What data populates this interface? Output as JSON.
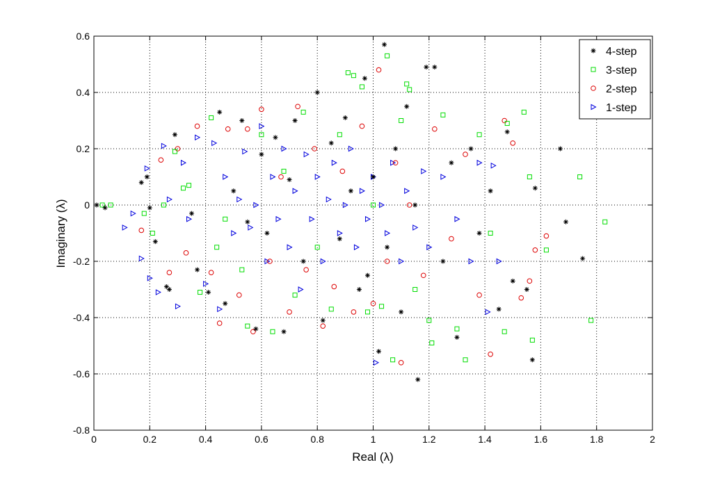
{
  "chart_data": {
    "type": "scatter",
    "title": "",
    "xlabel": "Real (λ)",
    "ylabel": "Imaginary (λ)",
    "xlim": [
      0,
      2
    ],
    "ylim": [
      -0.8,
      0.6
    ],
    "xticks": [
      "0",
      "0.2",
      "0.4",
      "0.6",
      "0.8",
      "1",
      "1.2",
      "1.4",
      "1.6",
      "1.8",
      "2"
    ],
    "yticks": [
      "0.6",
      "0.4",
      "0.2",
      "0",
      "-0.2",
      "-0.4",
      "-0.6",
      "-0.8"
    ],
    "grid": true,
    "legend_position": "top-right",
    "series": [
      {
        "name": "4-step",
        "marker": "asterisk",
        "color": "#000000",
        "points": [
          [
            0.01,
            0.0
          ],
          [
            0.04,
            -0.01
          ],
          [
            0.17,
            0.08
          ],
          [
            0.19,
            0.1
          ],
          [
            0.2,
            -0.01
          ],
          [
            0.22,
            -0.13
          ],
          [
            0.26,
            -0.29
          ],
          [
            0.27,
            -0.3
          ],
          [
            0.29,
            0.25
          ],
          [
            0.35,
            -0.03
          ],
          [
            0.37,
            -0.23
          ],
          [
            0.41,
            -0.31
          ],
          [
            0.45,
            0.33
          ],
          [
            0.47,
            -0.35
          ],
          [
            0.5,
            0.05
          ],
          [
            0.53,
            0.3
          ],
          [
            0.55,
            -0.06
          ],
          [
            0.58,
            -0.44
          ],
          [
            0.6,
            0.18
          ],
          [
            0.62,
            -0.1
          ],
          [
            0.65,
            0.24
          ],
          [
            0.68,
            -0.45
          ],
          [
            0.7,
            0.09
          ],
          [
            0.72,
            0.3
          ],
          [
            0.75,
            -0.2
          ],
          [
            0.8,
            0.4
          ],
          [
            0.82,
            -0.41
          ],
          [
            0.85,
            0.22
          ],
          [
            0.88,
            -0.12
          ],
          [
            0.9,
            0.31
          ],
          [
            0.92,
            0.05
          ],
          [
            0.95,
            -0.3
          ],
          [
            0.97,
            0.45
          ],
          [
            0.98,
            -0.25
          ],
          [
            1.0,
            0.1
          ],
          [
            1.02,
            -0.52
          ],
          [
            1.04,
            0.57
          ],
          [
            1.05,
            -0.15
          ],
          [
            1.08,
            0.2
          ],
          [
            1.1,
            -0.38
          ],
          [
            1.12,
            0.35
          ],
          [
            1.15,
            0.0
          ],
          [
            1.16,
            -0.62
          ],
          [
            1.19,
            0.49
          ],
          [
            1.22,
            0.49
          ],
          [
            1.25,
            -0.2
          ],
          [
            1.28,
            0.15
          ],
          [
            1.3,
            -0.47
          ],
          [
            1.35,
            0.2
          ],
          [
            1.38,
            -0.1
          ],
          [
            1.42,
            0.05
          ],
          [
            1.45,
            -0.37
          ],
          [
            1.48,
            0.26
          ],
          [
            1.5,
            -0.27
          ],
          [
            1.55,
            -0.3
          ],
          [
            1.57,
            -0.55
          ],
          [
            1.58,
            0.06
          ],
          [
            1.67,
            0.2
          ],
          [
            1.69,
            -0.06
          ],
          [
            1.75,
            -0.19
          ]
        ]
      },
      {
        "name": "3-step",
        "marker": "square",
        "color": "#00dd00",
        "points": [
          [
            0.03,
            0.0
          ],
          [
            0.06,
            0.0
          ],
          [
            0.18,
            -0.03
          ],
          [
            0.21,
            -0.1
          ],
          [
            0.25,
            0.0
          ],
          [
            0.29,
            0.19
          ],
          [
            0.32,
            0.06
          ],
          [
            0.34,
            0.07
          ],
          [
            0.38,
            -0.31
          ],
          [
            0.42,
            0.31
          ],
          [
            0.44,
            -0.15
          ],
          [
            0.47,
            -0.05
          ],
          [
            0.53,
            -0.23
          ],
          [
            0.55,
            -0.43
          ],
          [
            0.6,
            0.25
          ],
          [
            0.64,
            -0.45
          ],
          [
            0.68,
            0.12
          ],
          [
            0.72,
            -0.32
          ],
          [
            0.75,
            0.33
          ],
          [
            0.8,
            -0.15
          ],
          [
            0.85,
            -0.37
          ],
          [
            0.88,
            0.25
          ],
          [
            0.91,
            0.47
          ],
          [
            0.93,
            0.46
          ],
          [
            0.96,
            0.42
          ],
          [
            0.98,
            -0.38
          ],
          [
            1.0,
            0.0
          ],
          [
            1.03,
            -0.36
          ],
          [
            1.05,
            0.53
          ],
          [
            1.07,
            -0.55
          ],
          [
            1.1,
            0.3
          ],
          [
            1.12,
            0.43
          ],
          [
            1.13,
            0.41
          ],
          [
            1.15,
            -0.3
          ],
          [
            1.2,
            -0.41
          ],
          [
            1.21,
            -0.49
          ],
          [
            1.25,
            0.32
          ],
          [
            1.3,
            -0.44
          ],
          [
            1.33,
            -0.55
          ],
          [
            1.38,
            0.25
          ],
          [
            1.42,
            -0.1
          ],
          [
            1.47,
            -0.45
          ],
          [
            1.48,
            0.29
          ],
          [
            1.54,
            0.33
          ],
          [
            1.56,
            0.1
          ],
          [
            1.57,
            -0.48
          ],
          [
            1.62,
            -0.16
          ],
          [
            1.74,
            0.1
          ],
          [
            1.78,
            -0.41
          ],
          [
            1.83,
            -0.06
          ]
        ]
      },
      {
        "name": "2-step",
        "marker": "circle",
        "color": "#dd0000",
        "points": [
          [
            0.17,
            -0.09
          ],
          [
            0.24,
            0.16
          ],
          [
            0.27,
            -0.24
          ],
          [
            0.3,
            0.2
          ],
          [
            0.33,
            -0.17
          ],
          [
            0.37,
            0.28
          ],
          [
            0.42,
            -0.24
          ],
          [
            0.45,
            -0.42
          ],
          [
            0.48,
            0.27
          ],
          [
            0.52,
            -0.32
          ],
          [
            0.55,
            0.27
          ],
          [
            0.57,
            -0.45
          ],
          [
            0.6,
            0.34
          ],
          [
            0.63,
            -0.2
          ],
          [
            0.67,
            0.1
          ],
          [
            0.7,
            -0.38
          ],
          [
            0.73,
            0.35
          ],
          [
            0.76,
            -0.23
          ],
          [
            0.79,
            0.2
          ],
          [
            0.82,
            -0.43
          ],
          [
            0.86,
            -0.29
          ],
          [
            0.89,
            0.12
          ],
          [
            0.93,
            -0.38
          ],
          [
            0.96,
            0.28
          ],
          [
            1.0,
            -0.35
          ],
          [
            1.02,
            0.48
          ],
          [
            1.05,
            -0.2
          ],
          [
            1.08,
            0.15
          ],
          [
            1.1,
            -0.56
          ],
          [
            1.13,
            0.0
          ],
          [
            1.18,
            -0.25
          ],
          [
            1.22,
            0.27
          ],
          [
            1.28,
            -0.12
          ],
          [
            1.33,
            0.18
          ],
          [
            1.38,
            -0.32
          ],
          [
            1.42,
            -0.53
          ],
          [
            1.47,
            0.3
          ],
          [
            1.5,
            0.22
          ],
          [
            1.53,
            -0.33
          ],
          [
            1.56,
            -0.27
          ],
          [
            1.58,
            -0.16
          ],
          [
            1.62,
            -0.11
          ]
        ]
      },
      {
        "name": "1-step",
        "marker": "triangle-right",
        "color": "#0000dd",
        "points": [
          [
            0.11,
            -0.08
          ],
          [
            0.14,
            -0.03
          ],
          [
            0.17,
            -0.19
          ],
          [
            0.19,
            0.13
          ],
          [
            0.2,
            -0.26
          ],
          [
            0.23,
            -0.31
          ],
          [
            0.25,
            0.21
          ],
          [
            0.27,
            0.02
          ],
          [
            0.3,
            -0.36
          ],
          [
            0.32,
            0.15
          ],
          [
            0.34,
            -0.05
          ],
          [
            0.37,
            0.24
          ],
          [
            0.4,
            -0.28
          ],
          [
            0.43,
            0.22
          ],
          [
            0.45,
            -0.37
          ],
          [
            0.47,
            0.1
          ],
          [
            0.5,
            -0.1
          ],
          [
            0.52,
            0.02
          ],
          [
            0.54,
            0.19
          ],
          [
            0.56,
            -0.08
          ],
          [
            0.58,
            0.0
          ],
          [
            0.6,
            0.28
          ],
          [
            0.62,
            -0.2
          ],
          [
            0.64,
            0.1
          ],
          [
            0.66,
            -0.05
          ],
          [
            0.68,
            0.2
          ],
          [
            0.7,
            -0.15
          ],
          [
            0.72,
            0.05
          ],
          [
            0.74,
            -0.3
          ],
          [
            0.76,
            0.18
          ],
          [
            0.78,
            -0.05
          ],
          [
            0.8,
            0.1
          ],
          [
            0.82,
            -0.2
          ],
          [
            0.84,
            0.02
          ],
          [
            0.86,
            0.15
          ],
          [
            0.88,
            -0.1
          ],
          [
            0.9,
            0.0
          ],
          [
            0.92,
            0.2
          ],
          [
            0.94,
            -0.15
          ],
          [
            0.96,
            0.05
          ],
          [
            0.98,
            -0.05
          ],
          [
            1.0,
            0.1
          ],
          [
            1.01,
            -0.56
          ],
          [
            1.03,
            0.0
          ],
          [
            1.05,
            -0.1
          ],
          [
            1.07,
            0.15
          ],
          [
            1.1,
            -0.2
          ],
          [
            1.12,
            0.05
          ],
          [
            1.15,
            -0.08
          ],
          [
            1.18,
            0.12
          ],
          [
            1.2,
            -0.15
          ],
          [
            1.25,
            0.1
          ],
          [
            1.3,
            -0.05
          ],
          [
            1.35,
            -0.2
          ],
          [
            1.38,
            0.15
          ],
          [
            1.41,
            -0.38
          ],
          [
            1.43,
            0.14
          ],
          [
            1.45,
            -0.2
          ]
        ]
      }
    ]
  }
}
